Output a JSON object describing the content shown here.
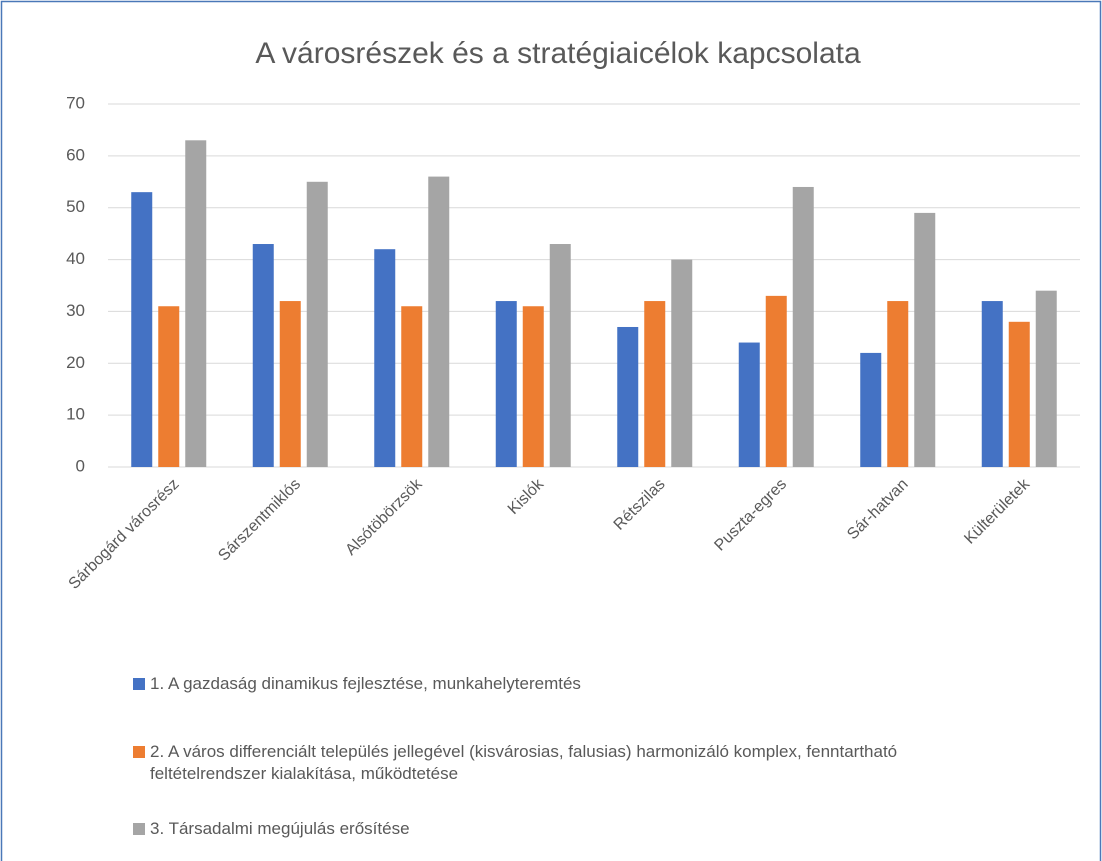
{
  "chart_data": {
    "type": "bar",
    "title": "A városrészek és a stratégiaicélok kapcsolata",
    "categories": [
      "Sárbogárd városrész",
      "Sárszentmiklós",
      "Alsótöbörzsök",
      "Kislók",
      "Rétszilas",
      "Puszta-egres",
      "Sár-hatvan",
      "Külterületek"
    ],
    "series": [
      {
        "name": "1. A gazdaság dinamikus fejlesztése, munkahelyteremtés",
        "color": "#4472c4",
        "values": [
          53,
          43,
          42,
          32,
          27,
          24,
          22,
          32
        ]
      },
      {
        "name": "2. A város differenciált település jellegével (kisvárosias, falusias) harmonizáló komplex, fenntartható feltételrendszer kialakítása, működtetése",
        "color": "#ed7d31",
        "values": [
          31,
          32,
          31,
          31,
          32,
          33,
          32,
          28
        ]
      },
      {
        "name": "3. Társadalmi megújulás erősítése",
        "color": "#a5a5a5",
        "values": [
          63,
          55,
          56,
          43,
          40,
          54,
          49,
          34
        ]
      }
    ],
    "ylim": [
      0,
      70
    ],
    "yticks": [
      0,
      10,
      20,
      30,
      40,
      50,
      60,
      70
    ],
    "grid": true,
    "legend": "bottom"
  }
}
